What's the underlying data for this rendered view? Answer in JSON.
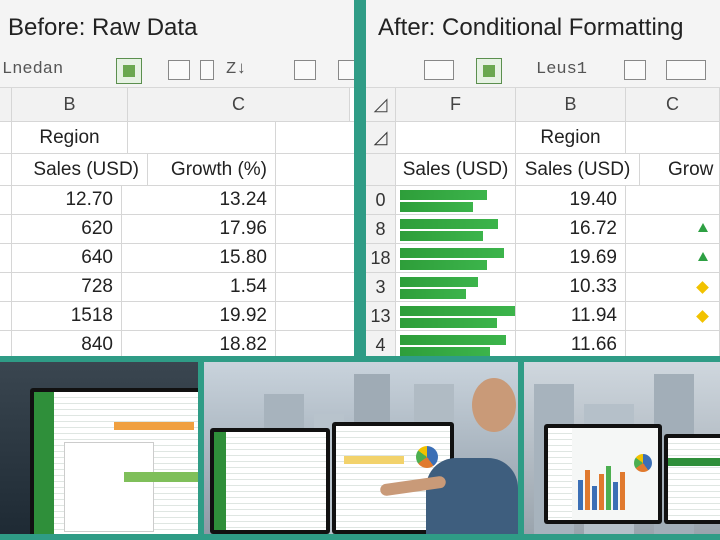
{
  "left_panel": {
    "title": "Before: Raw Data",
    "toolbar": {
      "font_name": "Lnedan",
      "sort": "Z↓"
    },
    "col_headers": [
      "B",
      "C"
    ],
    "header_row": {
      "region": "Region"
    },
    "field_row": {
      "sales": "Sales (USD)",
      "growth": "Growth (%)"
    },
    "rows": [
      {
        "sales": "12.70",
        "growth": "13.24"
      },
      {
        "sales": "620",
        "growth": "17.96"
      },
      {
        "sales": "640",
        "growth": "15.80"
      },
      {
        "sales": "728",
        "growth": "1.54"
      },
      {
        "sales": "1518",
        "growth": "19.92"
      },
      {
        "sales": "840",
        "growth": "18.82"
      }
    ]
  },
  "right_panel": {
    "title": "After: Conditional Formatting",
    "toolbar": {
      "font_name": "Leus1"
    },
    "col_headers": [
      "F",
      "B",
      "C"
    ],
    "header_row": {
      "region": "Region"
    },
    "field_row": {
      "sales_f": "Sales (USD)",
      "sales": "Sales (USD)",
      "growth": "Grow"
    },
    "rows": [
      {
        "rn": "0",
        "bar": 0.62,
        "sales": "19.40",
        "mark": "none"
      },
      {
        "rn": "8",
        "bar": 0.7,
        "sales": "16.72",
        "mark": "up"
      },
      {
        "rn": "18",
        "bar": 0.74,
        "sales": "19.69",
        "mark": "up"
      },
      {
        "rn": "3",
        "bar": 0.56,
        "sales": "10.33",
        "mark": "flat"
      },
      {
        "rn": "13",
        "bar": 0.82,
        "sales": "11.94",
        "mark": "flat"
      },
      {
        "rn": "4",
        "bar": 0.76,
        "sales": "11.66",
        "mark": "none"
      }
    ],
    "colors": {
      "bar": "#3cb44b",
      "up": "#2ea043",
      "flat": "#f2c200"
    }
  },
  "photos": [
    "spreadsheet-code-monitor",
    "analyst-pointing-at-monitors",
    "dashboard-charts-monitors"
  ],
  "colors": {
    "frame": "#2f9c86",
    "title_bg": "#f4f4f4"
  }
}
